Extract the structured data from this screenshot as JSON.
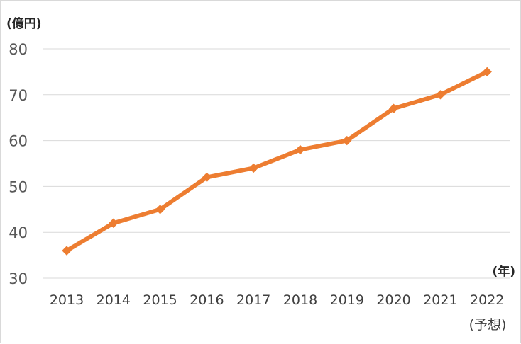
{
  "chart_data": {
    "type": "line",
    "ylabel": "(億円)",
    "xlabel": "(年)",
    "categories": [
      "2013",
      "2014",
      "2015",
      "2016",
      "2017",
      "2018",
      "2019",
      "2020",
      "2021",
      "2022"
    ],
    "category_note": {
      "index": 9,
      "text": "(予想)"
    },
    "series": [
      {
        "values": [
          36,
          42,
          45,
          52,
          54,
          58,
          60,
          67,
          70,
          75
        ]
      }
    ],
    "ylim": [
      30,
      80
    ],
    "yticks": [
      "30",
      "40",
      "50",
      "60",
      "70",
      "80"
    ],
    "grid": true,
    "line_color": "#ed7d31",
    "grid_color": "#d9d9d9"
  }
}
